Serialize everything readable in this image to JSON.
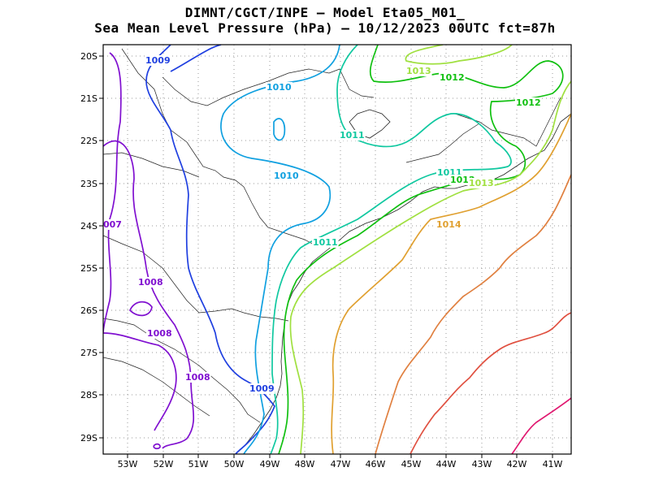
{
  "title_line1": "DIMNT/CGCT/INPE –  Model Eta05_M01_",
  "title_line2": "Sea Mean Level Pressure (hPa) – 10/12/2023 00UTC fct=87h",
  "lon_ticks": [
    "53W",
    "52W",
    "51W",
    "50W",
    "49W",
    "48W",
    "47W",
    "46W",
    "45W",
    "44W",
    "43W",
    "42W",
    "41W"
  ],
  "lat_ticks": [
    "20S",
    "21S",
    "22S",
    "23S",
    "24S",
    "25S",
    "26S",
    "27S",
    "28S",
    "29S"
  ],
  "contour_labels": [
    {
      "text": "1009",
      "color": "#2040e0"
    },
    {
      "text": "1010",
      "color": "#10a0e0"
    },
    {
      "text": "1011",
      "color": "#10c8a0"
    },
    {
      "text": "1012",
      "color": "#10c010"
    },
    {
      "text": "1013",
      "color": "#a0e040"
    },
    {
      "text": "1012",
      "color": "#10c010"
    },
    {
      "text": "1011",
      "color": "#10c8a0"
    },
    {
      "text": "1010",
      "color": "#10a0e0"
    },
    {
      "text": "1011",
      "color": "#10c8a0"
    },
    {
      "text": "1011",
      "color": "#10c8a0"
    },
    {
      "text": "1012",
      "color": "#10c010"
    },
    {
      "text": "1013",
      "color": "#a0e040"
    },
    {
      "text": "1014",
      "color": "#e0a030"
    },
    {
      "text": "1008",
      "color": "#8010d0"
    },
    {
      "text": "1008",
      "color": "#8010d0"
    },
    {
      "text": "1008",
      "color": "#8010d0"
    },
    {
      "text": "1009",
      "color": "#2040e0"
    },
    {
      "text": "007",
      "color": "#8010d0"
    }
  ]
}
